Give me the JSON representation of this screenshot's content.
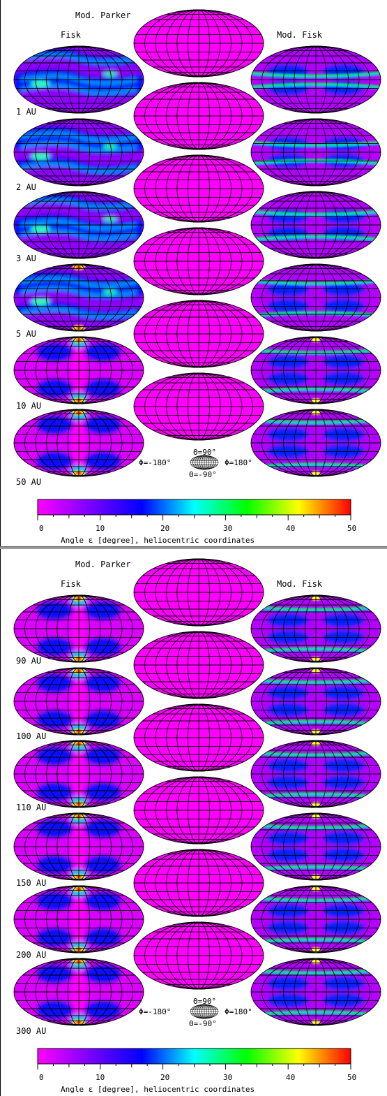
{
  "panels": [
    {
      "title": "Mod. Parker",
      "left_label": "Fisk",
      "right_label": "Mod. Fisk",
      "rows": [
        "1 AU",
        "2 AU",
        "3 AU",
        "5 AU",
        "10 AU",
        "50 AU"
      ],
      "key": {
        "top": "Θ=90°",
        "bottom": "Θ=-90°",
        "left": "Φ=-180°",
        "right": "Φ=180°"
      },
      "colorbar": {
        "ticks": [
          "0",
          "10",
          "20",
          "30",
          "40",
          "50"
        ],
        "label": "Angle ε [degree], heliocentric coordinates"
      }
    },
    {
      "title": "Mod. Parker",
      "left_label": "Fisk",
      "right_label": "Mod. Fisk",
      "rows": [
        "90 AU",
        "100 AU",
        "110 AU",
        "150 AU",
        "200 AU",
        "300 AU"
      ],
      "key": {
        "top": "Θ=90°",
        "bottom": "Θ=-90°",
        "left": "Φ=-180°",
        "right": "Φ=180°"
      },
      "colorbar": {
        "ticks": [
          "0",
          "10",
          "20",
          "30",
          "40",
          "50"
        ],
        "label": "Angle ε [degree], heliocentric coordinates"
      }
    }
  ],
  "chart_data": {
    "type": "heatmap",
    "projection": "Aitoff-Hammer (equal-area), heliocentric lon/lat grid",
    "colorscale": [
      "#ff00ff",
      "#7a00ff",
      "#0000ff",
      "#00ffff",
      "#00ff00",
      "#ffff00",
      "#ff0000"
    ],
    "colorbar_range": [
      0,
      50
    ],
    "colorbar_unit": "degree",
    "models": [
      "Fisk",
      "Mod. Parker",
      "Mod. Fisk"
    ],
    "distances_AU": [
      1,
      2,
      3,
      5,
      10,
      50,
      90,
      100,
      110,
      150,
      200,
      300
    ],
    "approx_max_angle_degree": {
      "Mod. Parker": [
        3,
        3,
        3,
        3,
        3,
        3,
        3,
        3,
        3,
        3,
        3,
        3
      ],
      "Fisk": [
        22,
        24,
        24,
        22,
        35,
        40,
        40,
        40,
        40,
        40,
        40,
        40
      ],
      "Mod. Fisk": [
        15,
        20,
        28,
        30,
        30,
        35,
        35,
        35,
        35,
        35,
        35,
        35
      ]
    }
  }
}
